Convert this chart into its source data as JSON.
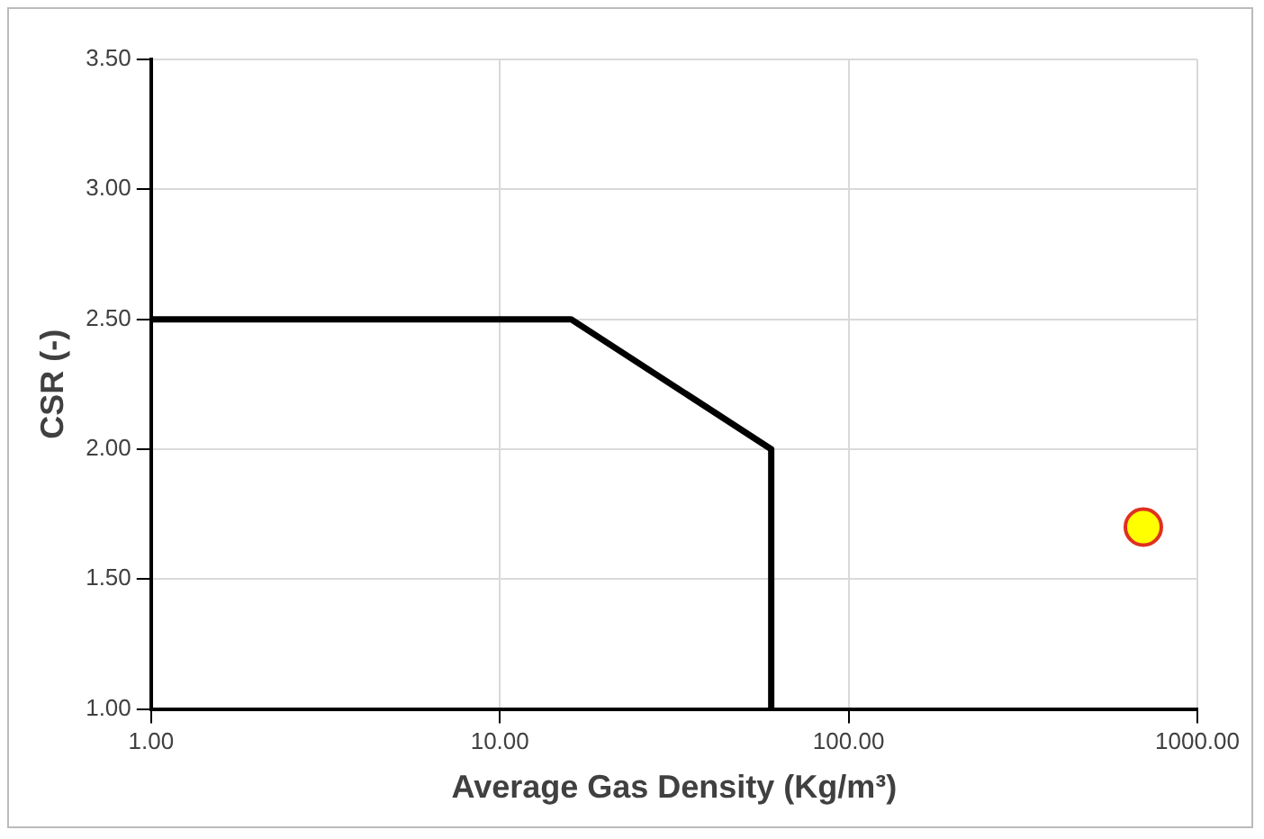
{
  "chart_data": {
    "type": "line",
    "xlabel": "Average Gas Density (Kg/m³)",
    "ylabel": "CSR (-)",
    "log": "x",
    "xlim": [
      1,
      1000
    ],
    "xticks": [
      {
        "value": 1,
        "label": "1.00"
      },
      {
        "value": 10,
        "label": "10.00"
      },
      {
        "value": 100,
        "label": "100.00"
      },
      {
        "value": 1000,
        "label": "1000.00"
      }
    ],
    "ylim": [
      1,
      3.5
    ],
    "yticks": [
      {
        "value": 1,
        "label": "1.00"
      },
      {
        "value": 1.5,
        "label": "1.50"
      },
      {
        "value": 2,
        "label": "2.00"
      },
      {
        "value": 2.5,
        "label": "2.50"
      },
      {
        "value": 3,
        "label": "3.00"
      },
      {
        "value": 3.5,
        "label": "3.50"
      }
    ],
    "grid": true,
    "legend": false,
    "series": [
      {
        "type": "line",
        "color": "#000000",
        "x": [
          1,
          16,
          60,
          60
        ],
        "values": [
          2.5,
          2.5,
          2,
          1
        ],
        "marker": "none"
      },
      {
        "type": "scatter",
        "color": "#ffff00",
        "x": [
          700
        ],
        "values": [
          1.7
        ],
        "marker": "circle"
      }
    ]
  }
}
